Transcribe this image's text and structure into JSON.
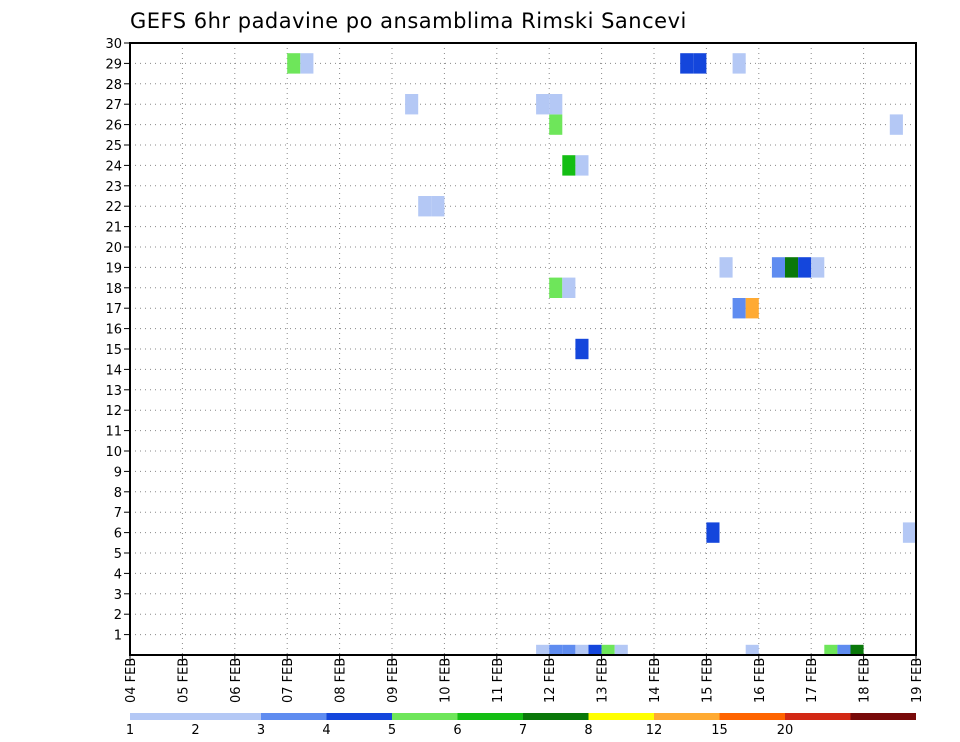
{
  "chart_data": {
    "type": "heatmap",
    "title": "GEFS 6hr padavine po ansamblima Rimski Sancevi",
    "xlabel": "",
    "ylabel": "",
    "x_ticks": [
      "04 FEB",
      "05 FEB",
      "06 FEB",
      "07 FEB",
      "08 FEB",
      "09 FEB",
      "10 FEB",
      "11 FEB",
      "12 FEB",
      "13 FEB",
      "14 FEB",
      "15 FEB",
      "16 FEB",
      "17 FEB",
      "18 FEB",
      "19 FEB"
    ],
    "y_ticks": [
      "1",
      "2",
      "3",
      "4",
      "5",
      "6",
      "7",
      "8",
      "9",
      "10",
      "11",
      "12",
      "13",
      "14",
      "15",
      "16",
      "17",
      "18",
      "19",
      "20",
      "21",
      "22",
      "23",
      "24",
      "25",
      "26",
      "27",
      "28",
      "29",
      "30"
    ],
    "x_time_step_hours": 6,
    "y_range": [
      0,
      30
    ],
    "grid": "dotted",
    "legend_levels": [
      "1",
      "2",
      "3",
      "4",
      "5",
      "6",
      "7",
      "8",
      "12",
      "15",
      "20"
    ],
    "legend_colors": [
      "#b4c8f5",
      "#5f8cf0",
      "#1446dc",
      "#6ee65a",
      "#14be14",
      "#0a780a",
      "#ffff00",
      "#ffaa32",
      "#ff6400",
      "#d22814",
      "#780a0a"
    ],
    "cells": [
      {
        "time": "11 FEB 18Z",
        "member": 0,
        "color": "#b4c8f5"
      },
      {
        "time": "12 FEB 00Z",
        "member": 0,
        "color": "#5f8cf0"
      },
      {
        "time": "12 FEB 06Z",
        "member": 0,
        "color": "#5f8cf0"
      },
      {
        "time": "12 FEB 12Z",
        "member": 0,
        "color": "#b4c8f5"
      },
      {
        "time": "12 FEB 18Z",
        "member": 0,
        "color": "#1446dc"
      },
      {
        "time": "13 FEB 00Z",
        "member": 0,
        "color": "#6ee65a"
      },
      {
        "time": "13 FEB 06Z",
        "member": 0,
        "color": "#b4c8f5"
      },
      {
        "time": "15 FEB 18Z",
        "member": 0,
        "color": "#b4c8f5"
      },
      {
        "time": "17 FEB 06Z",
        "member": 0,
        "color": "#6ee65a"
      },
      {
        "time": "17 FEB 12Z",
        "member": 0,
        "color": "#5f8cf0"
      },
      {
        "time": "17 FEB 18Z",
        "member": 0,
        "color": "#0a780a"
      },
      {
        "time": "18 FEB 18Z",
        "member": 6,
        "color": "#b4c8f5"
      },
      {
        "time": "15 FEB 00Z",
        "member": 6,
        "color": "#1446dc"
      },
      {
        "time": "12 FEB 12Z",
        "member": 15,
        "color": "#1446dc"
      },
      {
        "time": "15 FEB 12Z",
        "member": 17,
        "color": "#5f8cf0"
      },
      {
        "time": "15 FEB 18Z",
        "member": 17,
        "color": "#ffaa32"
      },
      {
        "time": "12 FEB 00Z",
        "member": 18,
        "color": "#6ee65a"
      },
      {
        "time": "12 FEB 06Z",
        "member": 18,
        "color": "#b4c8f5"
      },
      {
        "time": "15 FEB 06Z",
        "member": 19,
        "color": "#b4c8f5"
      },
      {
        "time": "16 FEB 06Z",
        "member": 19,
        "color": "#5f8cf0"
      },
      {
        "time": "16 FEB 12Z",
        "member": 19,
        "color": "#0a780a"
      },
      {
        "time": "16 FEB 18Z",
        "member": 19,
        "color": "#1446dc"
      },
      {
        "time": "17 FEB 00Z",
        "member": 19,
        "color": "#b4c8f5"
      },
      {
        "time": "09 FEB 12Z",
        "member": 22,
        "color": "#b4c8f5"
      },
      {
        "time": "09 FEB 18Z",
        "member": 22,
        "color": "#b4c8f5"
      },
      {
        "time": "12 FEB 06Z",
        "member": 24,
        "color": "#14be14"
      },
      {
        "time": "12 FEB 12Z",
        "member": 24,
        "color": "#b4c8f5"
      },
      {
        "time": "12 FEB 00Z",
        "member": 26,
        "color": "#6ee65a"
      },
      {
        "time": "18 FEB 12Z",
        "member": 26,
        "color": "#b4c8f5"
      },
      {
        "time": "09 FEB 06Z",
        "member": 27,
        "color": "#b4c8f5"
      },
      {
        "time": "11 FEB 18Z",
        "member": 27,
        "color": "#b4c8f5"
      },
      {
        "time": "12 FEB 00Z",
        "member": 27,
        "color": "#b4c8f5"
      },
      {
        "time": "07 FEB 00Z",
        "member": 29,
        "color": "#6ee65a"
      },
      {
        "time": "07 FEB 06Z",
        "member": 29,
        "color": "#b4c8f5"
      },
      {
        "time": "14 FEB 12Z",
        "member": 29,
        "color": "#1446dc"
      },
      {
        "time": "14 FEB 18Z",
        "member": 29,
        "color": "#1446dc"
      },
      {
        "time": "15 FEB 12Z",
        "member": 29,
        "color": "#b4c8f5"
      }
    ]
  }
}
